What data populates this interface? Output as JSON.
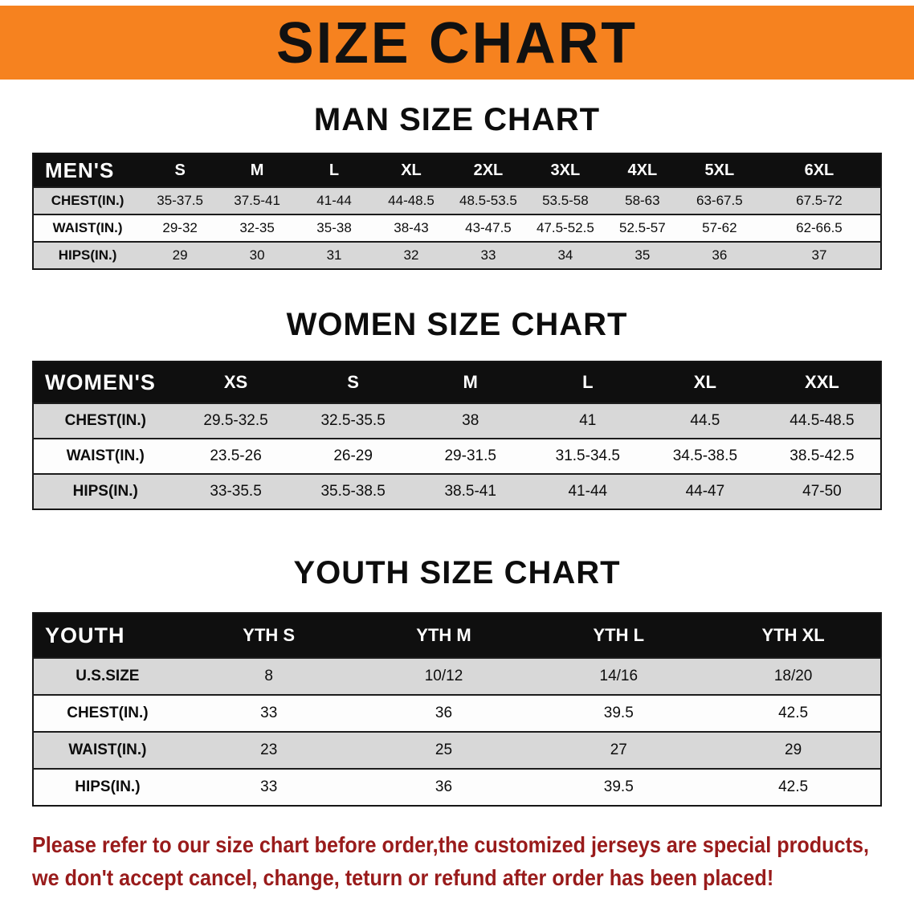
{
  "banner": {
    "title": "SIZE CHART"
  },
  "sections": [
    {
      "heading": "MAN SIZE CHART",
      "table": {
        "header": [
          "MEN'S",
          "S",
          "M",
          "L",
          "XL",
          "2XL",
          "3XL",
          "4XL",
          "5XL",
          "6XL"
        ],
        "rows": [
          [
            "CHEST(IN.)",
            "35-37.5",
            "37.5-41",
            "41-44",
            "44-48.5",
            "48.5-53.5",
            "53.5-58",
            "58-63",
            "63-67.5",
            "67.5-72"
          ],
          [
            "WAIST(IN.)",
            "29-32",
            "32-35",
            "35-38",
            "38-43",
            "43-47.5",
            "47.5-52.5",
            "52.5-57",
            "57-62",
            "62-66.5"
          ],
          [
            "HIPS(IN.)",
            "29",
            "30",
            "31",
            "32",
            "33",
            "34",
            "35",
            "36",
            "37"
          ]
        ]
      }
    },
    {
      "heading": "WOMEN SIZE CHART",
      "table": {
        "header": [
          "WOMEN'S",
          "XS",
          "S",
          "M",
          "L",
          "XL",
          "XXL"
        ],
        "rows": [
          [
            "CHEST(IN.)",
            "29.5-32.5",
            "32.5-35.5",
            "38",
            "41",
            "44.5",
            "44.5-48.5"
          ],
          [
            "WAIST(IN.)",
            "23.5-26",
            "26-29",
            "29-31.5",
            "31.5-34.5",
            "34.5-38.5",
            "38.5-42.5"
          ],
          [
            "HIPS(IN.)",
            "33-35.5",
            "35.5-38.5",
            "38.5-41",
            "41-44",
            "44-47",
            "47-50"
          ]
        ]
      }
    },
    {
      "heading": "YOUTH SIZE CHART",
      "table": {
        "header": [
          "YOUTH",
          "YTH S",
          "YTH M",
          "YTH L",
          "YTH XL"
        ],
        "rows": [
          [
            "U.S.SIZE",
            "8",
            "10/12",
            "14/16",
            "18/20"
          ],
          [
            "CHEST(IN.)",
            "33",
            "36",
            "39.5",
            "42.5"
          ],
          [
            "WAIST(IN.)",
            "23",
            "25",
            "27",
            "29"
          ],
          [
            "HIPS(IN.)",
            "33",
            "36",
            "39.5",
            "42.5"
          ]
        ]
      }
    }
  ],
  "notice": {
    "line1": "Please refer to our size chart before order,the customized jerseys are special products,",
    "line2": "we don't accept cancel, change, teturn or refund after order has been placed!"
  },
  "colors": {
    "banner_bg": "#F6821F",
    "banner_text": "#111111",
    "table_header_bg": "#0f0f0f",
    "table_header_text": "#ffffff",
    "row_shaded": "#d8d8d8",
    "row_plain": "#fdfdfd",
    "notice_text": "#991b1b"
  }
}
